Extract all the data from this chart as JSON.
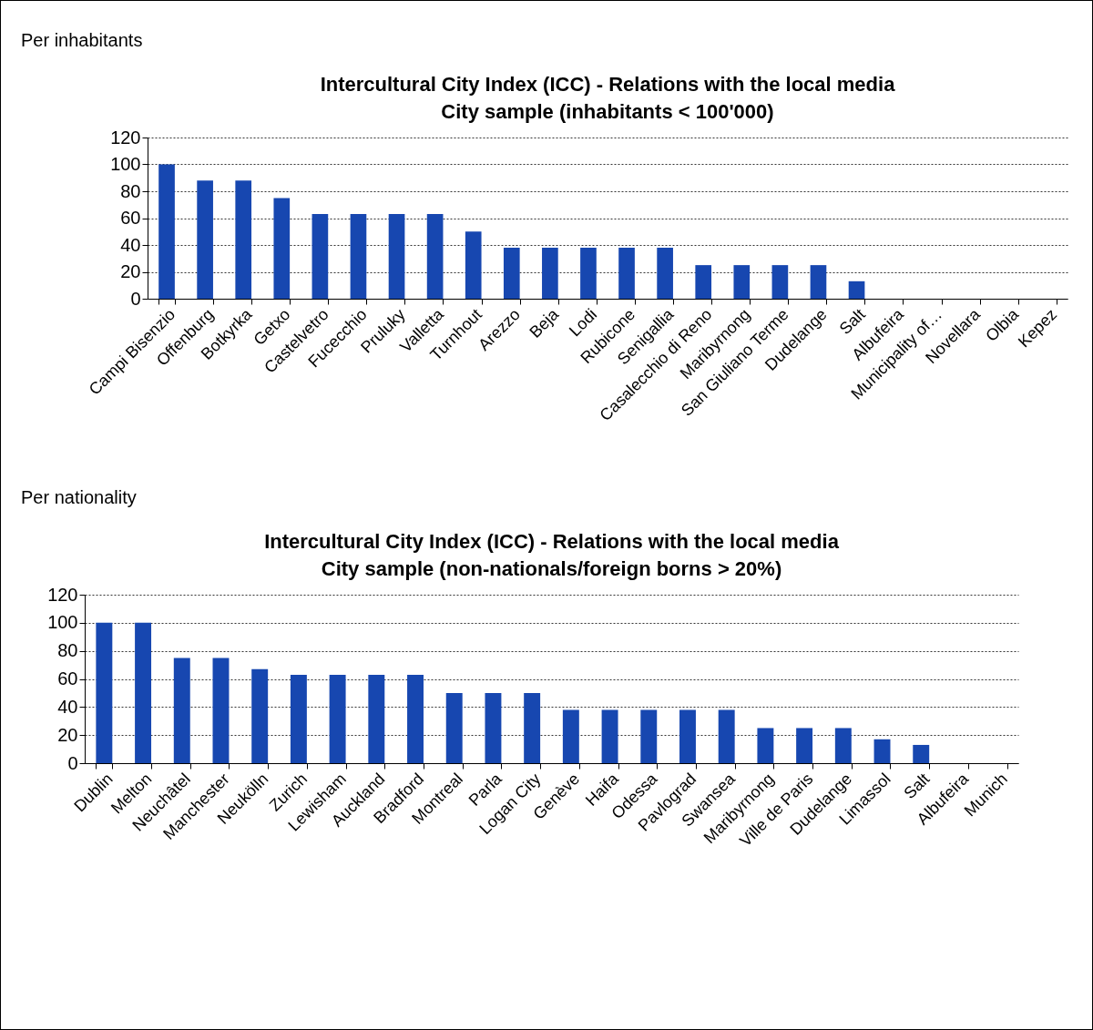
{
  "chart_data": [
    {
      "type": "bar",
      "title": [
        "Intercultural City Index (ICC) - Relations with the local media",
        "City sample (inhabitants < 100'000)"
      ],
      "annotations": [
        "Per inhabitants"
      ],
      "categories": [
        "Campi Bisenzio",
        "Offenburg",
        "Botkyrka",
        "Getxo",
        "Castelvetro",
        "Fucecchio",
        "Pruluky",
        "Valletta",
        "Turnhout",
        "Arezzo",
        "Beja",
        "Lodi",
        "Rubicone",
        "Senigallia",
        "Casalecchio di Reno",
        "Maribyrnong",
        "San Giuliano Terme",
        "Dudelange",
        "Salt",
        "Albufeira",
        "Municipality of…",
        "Novellara",
        "Olbia",
        "Kepez"
      ],
      "values": [
        100,
        88,
        88,
        75,
        63,
        63,
        63,
        63,
        50,
        38,
        38,
        38,
        38,
        38,
        25,
        25,
        25,
        25,
        13,
        0,
        0,
        0,
        0,
        0
      ],
      "color": "#1747b0",
      "ylim": [
        0,
        120
      ],
      "yticks": [
        0,
        20,
        40,
        60,
        80,
        100,
        120
      ],
      "grid": "y"
    },
    {
      "type": "bar",
      "title": [
        "Intercultural City Index (ICC) - Relations with the  local media",
        "City sample (non-nationals/foreign borns > 20%)"
      ],
      "annotations": [
        "Per nationality"
      ],
      "categories": [
        "Dublin",
        "Melton",
        "Neuchâtel",
        "Manchester",
        "Neukölln",
        "Zurich",
        "Lewisham",
        "Auckland",
        "Bradford",
        "Montreal",
        "Parla",
        "Logan City",
        "Genève",
        "Haifa",
        "Odessa",
        "Pavlograd",
        "Swansea",
        "Maribyrnong",
        "Ville de Paris",
        "Dudelange",
        "Limassol",
        "Salt",
        "Albufeira",
        "Munich"
      ],
      "values": [
        100,
        100,
        75,
        75,
        67,
        63,
        63,
        63,
        63,
        50,
        50,
        50,
        38,
        38,
        38,
        38,
        38,
        25,
        25,
        25,
        17,
        13,
        0,
        0
      ],
      "color": "#1747b0",
      "ylim": [
        0,
        120
      ],
      "yticks": [
        0,
        20,
        40,
        60,
        80,
        100,
        120
      ],
      "grid": "y"
    }
  ]
}
